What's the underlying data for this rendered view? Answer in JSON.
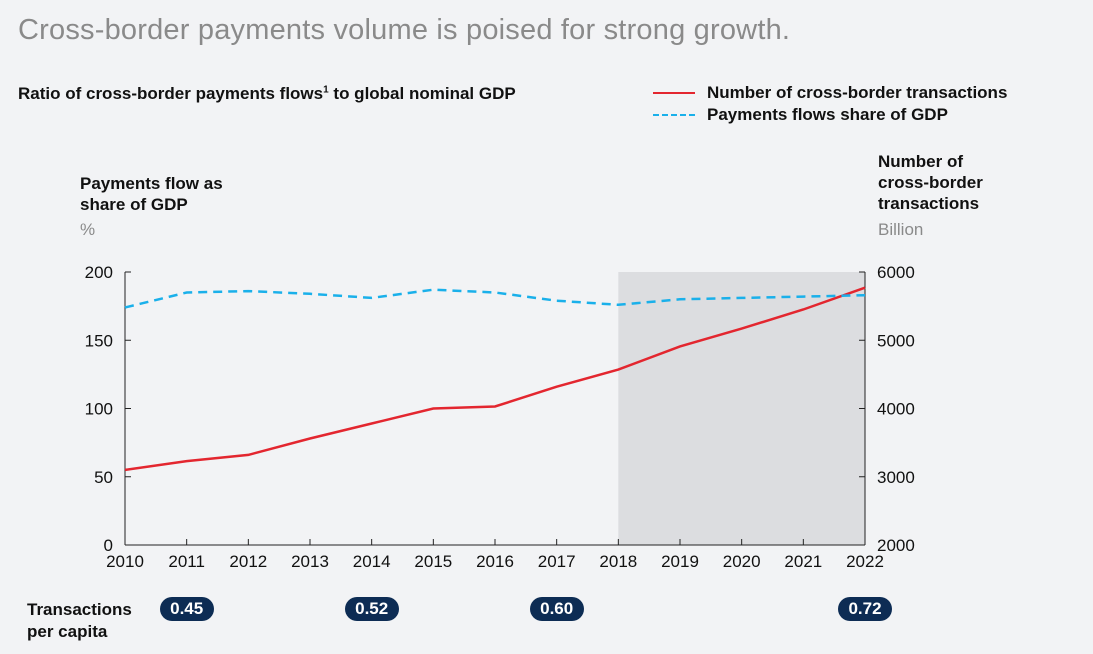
{
  "headline": "Cross-border payments volume is poised for strong growth.",
  "subtitle": {
    "text": "Ratio of cross-border payments flows",
    "footnote": "1",
    "text_after": " to global nominal GDP"
  },
  "legend": [
    {
      "label": "Number of cross-border transactions",
      "style": "solid",
      "color": "#e3262f"
    },
    {
      "label": "Payments flows share of GDP",
      "style": "dashed",
      "color": "#1ab0ea"
    }
  ],
  "left_axis": {
    "title_line1": "Payments flow as",
    "title_line2": "share of GDP",
    "unit": "%"
  },
  "right_axis": {
    "title_line1": "Number of",
    "title_line2": "cross-border",
    "title_line3": "transactions",
    "unit": "Billion"
  },
  "chart_data": {
    "type": "line",
    "x": [
      "2010",
      "2011",
      "2012",
      "2013",
      "2014",
      "2015",
      "2016",
      "2017",
      "2018",
      "2019",
      "2020",
      "2021",
      "2022"
    ],
    "series": [
      {
        "name": "Number of cross-border transactions",
        "axis": "right",
        "color": "#e3262f",
        "style": "solid",
        "values": [
          3100,
          3230,
          3320,
          3560,
          3780,
          4000,
          4030,
          4320,
          4570,
          4910,
          5170,
          5450,
          5770
        ]
      },
      {
        "name": "Payments flows share of GDP",
        "axis": "left",
        "color": "#1ab0ea",
        "style": "dashed",
        "values": [
          174,
          185,
          186,
          184,
          181,
          187,
          185,
          179,
          176,
          180,
          181,
          182,
          183
        ]
      }
    ],
    "y_left": {
      "ticks": [
        0,
        50,
        100,
        150,
        200
      ],
      "range": [
        0,
        200
      ]
    },
    "y_right": {
      "ticks": [
        2000,
        3000,
        4000,
        5000,
        6000
      ],
      "range": [
        2000,
        6000
      ]
    },
    "shaded_region": {
      "from": "2018",
      "to": "2022",
      "color": "#dcdde0"
    }
  },
  "per_capita": {
    "label_line1": "Transactions",
    "label_line2": "per capita",
    "items": [
      {
        "year": "2011",
        "value": "0.45"
      },
      {
        "year": "2014",
        "value": "0.52"
      },
      {
        "year": "2017",
        "value": "0.60"
      },
      {
        "year": "2022",
        "value": "0.72"
      }
    ]
  }
}
